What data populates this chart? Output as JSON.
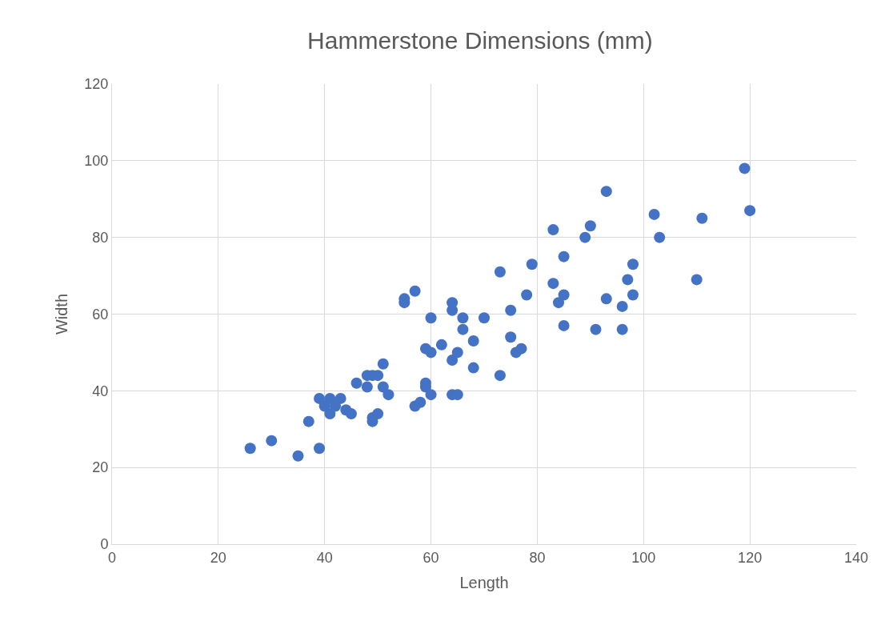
{
  "chart_data": {
    "type": "scatter",
    "title": "Hammerstone Dimensions (mm)",
    "xlabel": "Length",
    "ylabel": "Width",
    "xlim": [
      0,
      140
    ],
    "xticks": [
      0,
      20,
      40,
      60,
      80,
      100,
      120,
      140
    ],
    "ylim": [
      0,
      120
    ],
    "yticks": [
      0,
      20,
      40,
      60,
      80,
      100,
      120
    ],
    "grid": true,
    "marker": "circle",
    "series": [
      {
        "color": "#4472c4",
        "x": [
          26,
          30,
          35,
          39,
          37,
          39,
          40,
          41,
          41,
          42,
          43,
          44,
          45,
          46,
          48,
          48,
          49,
          50,
          49,
          49,
          50,
          51,
          51,
          52,
          55,
          55,
          57,
          57,
          58,
          59,
          59,
          59,
          60,
          60,
          60,
          62,
          64,
          64,
          64,
          64,
          65,
          65,
          66,
          66,
          68,
          68,
          70,
          73,
          73,
          75,
          75,
          76,
          77,
          78,
          79,
          83,
          83,
          84,
          85,
          85,
          85,
          89,
          90,
          91,
          93,
          93,
          96,
          96,
          97,
          98,
          98,
          102,
          103,
          110,
          111,
          119,
          120
        ],
        "values": [
          25,
          27,
          23,
          25,
          32,
          38,
          36,
          38,
          34,
          36,
          38,
          35,
          34,
          42,
          44,
          41,
          44,
          44,
          33,
          32,
          34,
          47,
          41,
          39,
          64,
          63,
          66,
          36,
          37,
          51,
          42,
          41,
          59,
          50,
          39,
          52,
          63,
          61,
          48,
          39,
          39,
          50,
          59,
          56,
          53,
          46,
          59,
          71,
          44,
          61,
          54,
          50,
          51,
          65,
          73,
          82,
          68,
          63,
          75,
          65,
          57,
          80,
          83,
          56,
          92,
          64,
          62,
          56,
          69,
          73,
          65,
          86,
          80,
          69,
          85,
          98,
          87
        ]
      }
    ]
  }
}
